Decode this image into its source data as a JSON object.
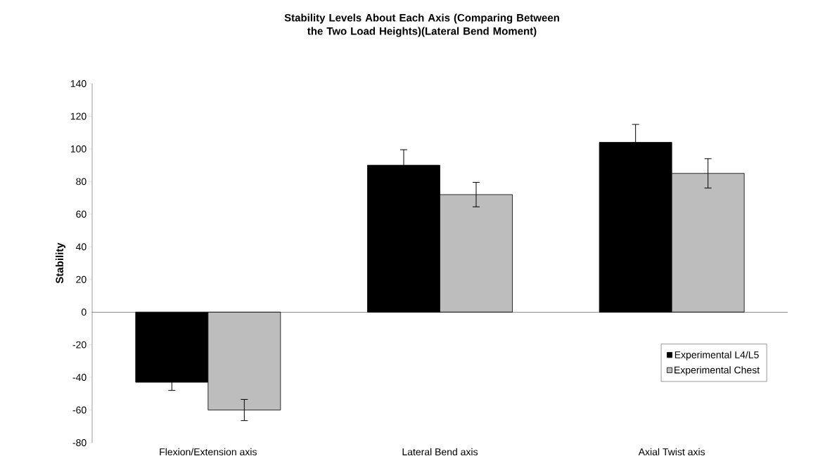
{
  "chart_data": {
    "type": "bar",
    "title": "Stability Levels About Each Axis (Comparing Between the Two Load Heights)(Lateral Bend Moment)",
    "ylabel": "Stability",
    "categories": [
      "Flexion/Extension axis",
      "Lateral Bend axis",
      "Axial Twist axis"
    ],
    "series": [
      {
        "name": "Experimental L4/L5",
        "color": "#000000",
        "values": [
          -43,
          90,
          104
        ],
        "errors": [
          5,
          9.5,
          11
        ]
      },
      {
        "name": "Experimental Chest",
        "color": "#bdbdbd",
        "values": [
          -60,
          72,
          85
        ],
        "errors": [
          6.5,
          7.5,
          9
        ]
      }
    ],
    "ylim": [
      -80,
      140
    ],
    "yticks": [
      -80,
      -60,
      -40,
      -20,
      0,
      20,
      40,
      60,
      80,
      100,
      120,
      140
    ],
    "legend": "bottom right"
  }
}
